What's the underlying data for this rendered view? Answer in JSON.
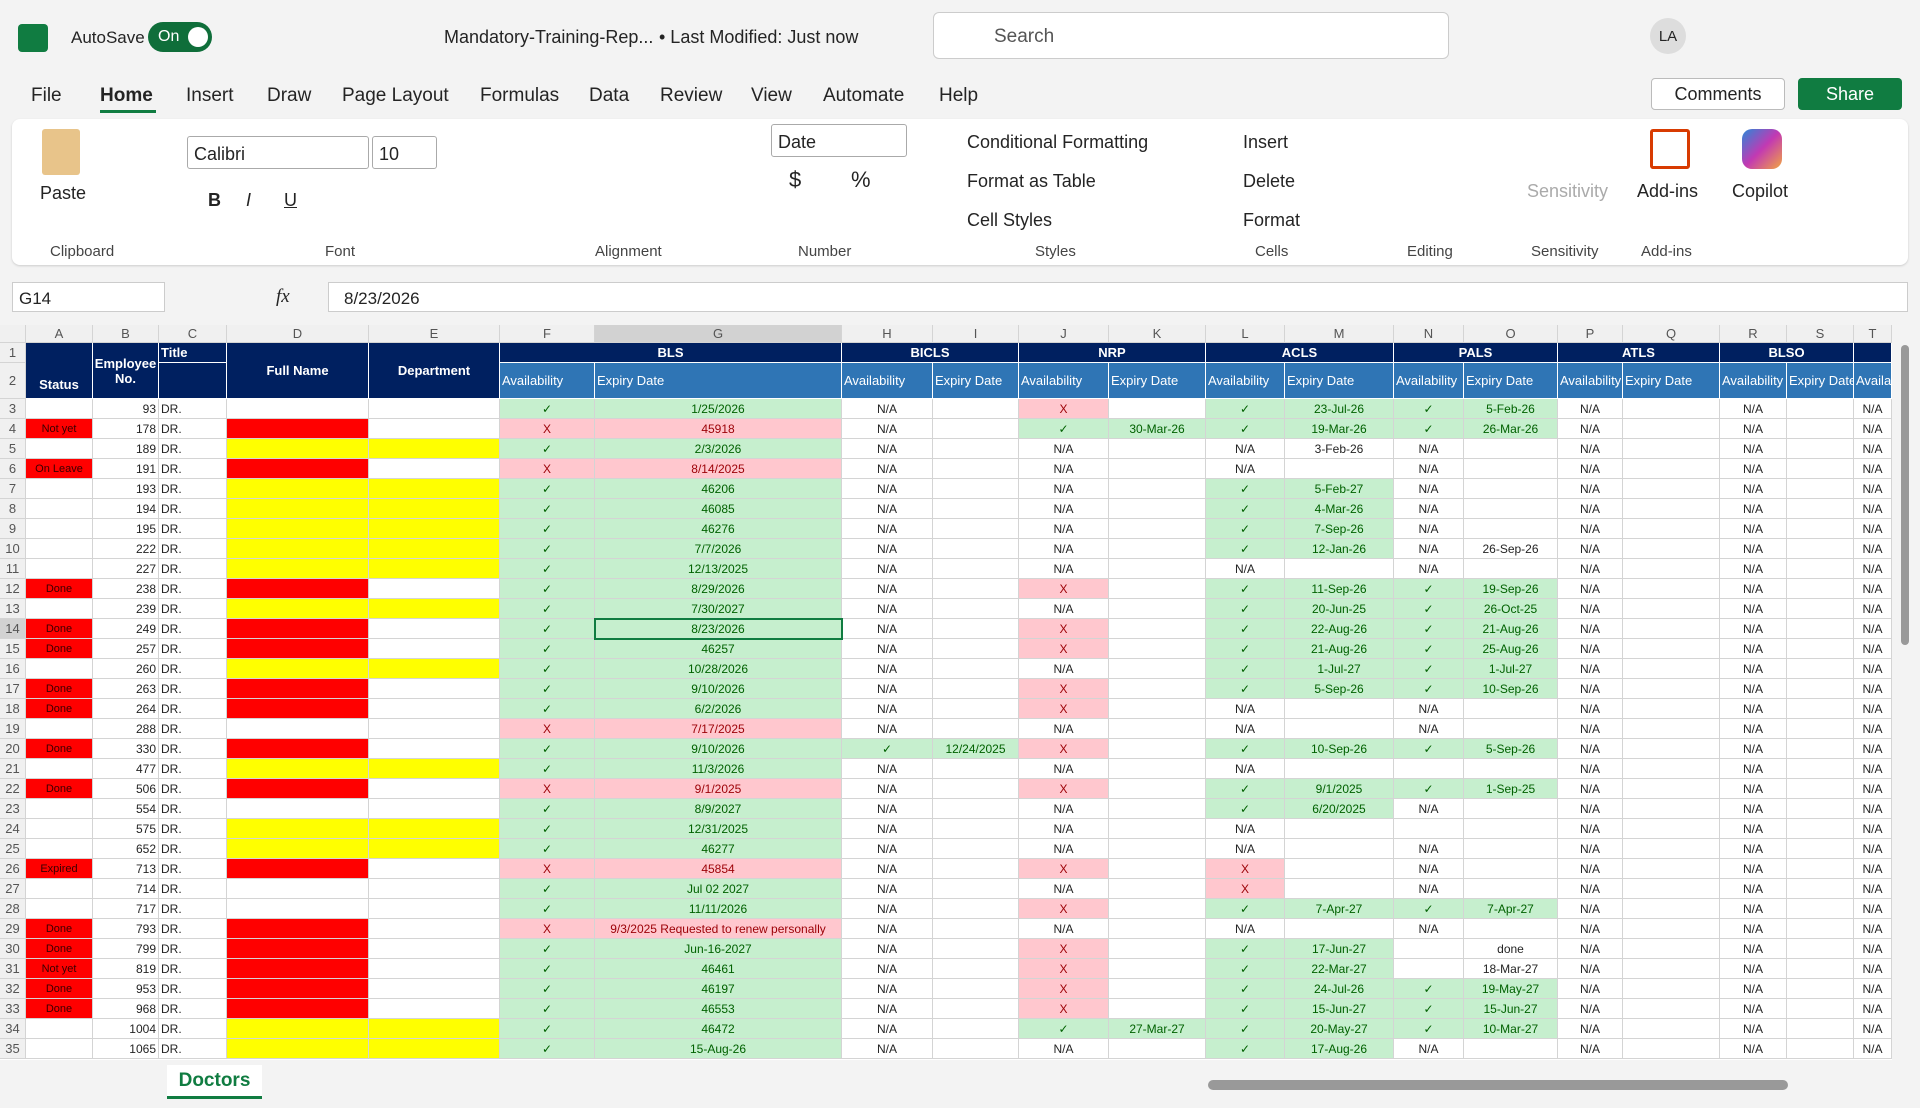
{
  "window": {
    "autosave_label": "AutoSave",
    "autosave_state": "On",
    "file_name": "Mandatory-Training-Rep...",
    "modified": "• Last Modified: Just now",
    "search": "Search",
    "user": "LA"
  },
  "menu": [
    "File",
    "Home",
    "Insert",
    "Draw",
    "Page Layout",
    "Formulas",
    "Data",
    "Review",
    "View",
    "Automate",
    "Help"
  ],
  "buttons": {
    "comments": "Comments",
    "share": "Share"
  },
  "ribbon": {
    "paste": "Paste",
    "font_name": "Calibri",
    "font_size": "10",
    "bold": "B",
    "italic": "I",
    "underline": "U",
    "number_format": "Date",
    "currency": "$",
    "percent": "%",
    "conditional_formatting": "Conditional Formatting",
    "format_as_table": "Format as Table",
    "cell_styles": "Cell Styles",
    "insert": "Insert",
    "delete": "Delete",
    "format": "Format",
    "sensitivity": "Sensitivity",
    "add_ins": "Add-ins",
    "copilot": "Copilot",
    "groups": [
      "Clipboard",
      "Font",
      "Alignment",
      "Number",
      "Styles",
      "Cells",
      "Editing",
      "Sensitivity",
      "Add-ins"
    ]
  },
  "formula_bar": {
    "name_box": "G14",
    "fx": "fx",
    "formula": "8/23/2026"
  },
  "sheet": {
    "columns": [
      "A",
      "B",
      "C",
      "D",
      "E",
      "F",
      "G",
      "H",
      "I",
      "J",
      "K",
      "L",
      "M",
      "N",
      "O",
      "P",
      "Q",
      "R",
      "S",
      "T"
    ],
    "row_numbers": [
      1,
      2,
      3,
      4,
      5,
      6,
      7,
      8,
      9,
      10,
      11,
      12,
      13,
      14,
      15,
      16,
      17,
      18,
      19,
      20,
      21,
      22,
      23,
      24,
      25,
      26,
      27,
      28,
      29,
      30,
      31,
      32,
      33,
      34,
      35
    ],
    "headers": [
      "Status",
      "Employee No.",
      "Title",
      "Full Name",
      "Department"
    ],
    "groups": [
      "BLS",
      "BICLS",
      "NRP",
      "ACLS",
      "PALS",
      "ATLS",
      "BLSO"
    ],
    "subheaders": [
      "Availability",
      "Expiry Date",
      "Availability",
      "Expiry Date",
      "Availability",
      "Expiry Date",
      "Availability",
      "Expiry Date",
      "Availability",
      "Expiry Date",
      "Availability",
      "Expiry Date",
      "Availability",
      "Expiry Date",
      "Availability"
    ],
    "rows": [
      {
        "status": null,
        "employee_no": 93,
        "title": "DR.",
        "cells": [
          "✓",
          "1/25/2026",
          "N/A",
          null,
          "X",
          null,
          "✓",
          "23-Jul-26",
          "✓",
          "5-Feb-26",
          "N/A",
          null,
          "N/A",
          null,
          "N/A"
        ]
      },
      {
        "status": "Not yet",
        "employee_no": 178,
        "title": "DR.",
        "highlight": "#ff0000",
        "cells": [
          "X",
          45918,
          "N/A",
          null,
          "✓",
          "30-Mar-26",
          "✓",
          "19-Mar-26",
          "✓",
          "26-Mar-26",
          "N/A",
          null,
          "N/A",
          null,
          "N/A"
        ]
      },
      {
        "status": null,
        "employee_no": 189,
        "title": "DR.",
        "highlight": "#ffff00",
        "cells": [
          "✓",
          "2/3/2026",
          "N/A",
          null,
          "N/A",
          null,
          "N/A",
          "3-Feb-26",
          "N/A",
          null,
          "N/A",
          null,
          "N/A",
          null,
          "N/A"
        ]
      },
      {
        "status": "On Leave",
        "employee_no": 191,
        "title": "DR.",
        "highlight": "#ff0000",
        "cells": [
          "X",
          "8/14/2025",
          "N/A",
          null,
          "N/A",
          null,
          "N/A",
          null,
          "N/A",
          null,
          "N/A",
          null,
          "N/A",
          null,
          "N/A"
        ]
      },
      {
        "status": null,
        "employee_no": 193,
        "title": "DR.",
        "highlight": "#ffff00",
        "cells": [
          "✓",
          46206,
          "N/A",
          null,
          "N/A",
          null,
          "✓",
          "5-Feb-27",
          "N/A",
          null,
          "N/A",
          null,
          "N/A",
          null,
          "N/A"
        ]
      },
      {
        "status": null,
        "employee_no": 194,
        "title": "DR.",
        "highlight": "#ffff00",
        "cells": [
          "✓",
          46085,
          "N/A",
          null,
          "N/A",
          null,
          "✓",
          "4-Mar-26",
          "N/A",
          null,
          "N/A",
          null,
          "N/A",
          null,
          "N/A"
        ]
      },
      {
        "status": null,
        "employee_no": 195,
        "title": "DR.",
        "highlight": "#ffff00",
        "cells": [
          "✓",
          46276,
          "N/A",
          null,
          "N/A",
          null,
          "✓",
          "7-Sep-26",
          "N/A",
          null,
          "N/A",
          null,
          "N/A",
          null,
          "N/A"
        ]
      },
      {
        "status": null,
        "employee_no": 222,
        "title": "DR.",
        "highlight": "#ffff00",
        "cells": [
          "✓",
          "7/7/2026",
          "N/A",
          null,
          "N/A",
          null,
          "✓",
          "12-Jan-26",
          "N/A",
          "26-Sep-26",
          "N/A",
          null,
          "N/A",
          null,
          "N/A"
        ]
      },
      {
        "status": null,
        "employee_no": 227,
        "title": "DR.",
        "highlight": "#ffff00",
        "cells": [
          "✓",
          "12/13/2025",
          "N/A",
          null,
          "N/A",
          null,
          "N/A",
          null,
          "N/A",
          null,
          "N/A",
          null,
          "N/A",
          null,
          "N/A"
        ]
      },
      {
        "status": "Done",
        "employee_no": 238,
        "title": "DR.",
        "highlight": "#ff0000",
        "cells": [
          "✓",
          "8/29/2026",
          "N/A",
          null,
          "X",
          null,
          "✓",
          "11-Sep-26",
          "✓",
          "19-Sep-26",
          "N/A",
          null,
          "N/A",
          null,
          "N/A"
        ]
      },
      {
        "status": null,
        "employee_no": 239,
        "title": "DR.",
        "highlight": "#ffff00",
        "cells": [
          "✓",
          "7/30/2027",
          "N/A",
          null,
          "N/A",
          null,
          "✓",
          "20-Jun-25",
          "✓",
          "26-Oct-25",
          "N/A",
          null,
          "N/A",
          null,
          "N/A"
        ]
      },
      {
        "status": "Done",
        "employee_no": 249,
        "title": "DR.",
        "highlight": "#ff0000",
        "cells": [
          "✓",
          "8/23/2026",
          "N/A",
          null,
          "X",
          null,
          "✓",
          "22-Aug-26",
          "✓",
          "21-Aug-26",
          "N/A",
          null,
          "N/A",
          null,
          "N/A"
        ]
      },
      {
        "status": "Done",
        "employee_no": 257,
        "title": "DR.",
        "highlight": "#ff0000",
        "cells": [
          "✓",
          46257,
          "N/A",
          null,
          "X",
          null,
          "✓",
          "21-Aug-26",
          "✓",
          "25-Aug-26",
          "N/A",
          null,
          "N/A",
          null,
          "N/A"
        ]
      },
      {
        "status": null,
        "employee_no": 260,
        "title": "DR.",
        "highlight": "#ffff00",
        "cells": [
          "✓",
          "10/28/2026",
          "N/A",
          null,
          "N/A",
          null,
          "✓",
          "1-Jul-27",
          "✓",
          "1-Jul-27",
          "N/A",
          null,
          "N/A",
          null,
          "N/A"
        ]
      },
      {
        "status": "Done",
        "employee_no": 263,
        "title": "DR.",
        "highlight": "#ff0000",
        "cells": [
          "✓",
          "9/10/2026",
          "N/A",
          null,
          "X",
          null,
          "✓",
          "5-Sep-26",
          "✓",
          "10-Sep-26",
          "N/A",
          null,
          "N/A",
          null,
          "N/A"
        ]
      },
      {
        "status": "Done",
        "employee_no": 264,
        "title": "DR.",
        "highlight": "#ff0000",
        "cells": [
          "✓",
          "6/2/2026",
          "N/A",
          null,
          "X",
          null,
          "N/A",
          null,
          "N/A",
          null,
          "N/A",
          null,
          "N/A",
          null,
          "N/A"
        ]
      },
      {
        "status": null,
        "employee_no": 288,
        "title": "DR.",
        "cells": [
          "X",
          "7/17/2025",
          "N/A",
          null,
          "N/A",
          null,
          "N/A",
          null,
          "N/A",
          null,
          "N/A",
          null,
          "N/A",
          null,
          "N/A"
        ]
      },
      {
        "status": "Done",
        "employee_no": 330,
        "title": "DR.",
        "highlight": "#ff0000",
        "cells": [
          "✓",
          "9/10/2026",
          "✓",
          "12/24/2025",
          "X",
          null,
          "✓",
          "10-Sep-26",
          "✓",
          "5-Sep-26",
          "N/A",
          null,
          "N/A",
          null,
          "N/A"
        ]
      },
      {
        "status": null,
        "employee_no": 477,
        "title": "DR.",
        "highlight": "#ffff00",
        "cells": [
          "✓",
          "11/3/2026",
          "N/A",
          null,
          "N/A",
          null,
          "N/A",
          null,
          null,
          null,
          "N/A",
          null,
          "N/A",
          null,
          "N/A"
        ]
      },
      {
        "status": "Done",
        "employee_no": 506,
        "title": "DR.",
        "highlight": "#ff0000",
        "cells": [
          "X",
          "9/1/2025",
          "N/A",
          null,
          "X",
          null,
          "✓",
          "9/1/2025",
          "✓",
          "1-Sep-25",
          "N/A",
          null,
          "N/A",
          null,
          "N/A"
        ]
      },
      {
        "status": null,
        "employee_no": 554,
        "title": "DR.",
        "cells": [
          "✓",
          "8/9/2027",
          "N/A",
          null,
          "N/A",
          null,
          "✓",
          "6/20/2025",
          "N/A",
          null,
          "N/A",
          null,
          "N/A",
          null,
          "N/A"
        ]
      },
      {
        "status": null,
        "employee_no": 575,
        "title": "DR.",
        "highlight": "#ffff00",
        "cells": [
          "✓",
          "12/31/2025",
          "N/A",
          null,
          "N/A",
          null,
          "N/A",
          null,
          null,
          null,
          "N/A",
          null,
          "N/A",
          null,
          "N/A"
        ]
      },
      {
        "status": null,
        "employee_no": 652,
        "title": "DR.",
        "highlight": "#ffff00",
        "cells": [
          "✓",
          46277,
          "N/A",
          null,
          "N/A",
          null,
          "N/A",
          null,
          "N/A",
          null,
          "N/A",
          null,
          "N/A",
          null,
          "N/A"
        ]
      },
      {
        "status": "Expired",
        "employee_no": 713,
        "title": "DR.",
        "highlight": "#ff0000",
        "cells": [
          "X",
          45854,
          "N/A",
          null,
          "X",
          null,
          "X",
          null,
          "N/A",
          null,
          "N/A",
          null,
          "N/A",
          null,
          "N/A"
        ]
      },
      {
        "status": null,
        "employee_no": 714,
        "title": "DR.",
        "cells": [
          "✓",
          "Jul 02 2027",
          "N/A",
          null,
          "N/A",
          null,
          "X",
          null,
          "N/A",
          null,
          "N/A",
          null,
          "N/A",
          null,
          "N/A"
        ]
      },
      {
        "status": null,
        "employee_no": 717,
        "title": "DR.",
        "cells": [
          "✓",
          "11/11/2026",
          "N/A",
          null,
          "X",
          null,
          "✓",
          "7-Apr-27",
          "✓",
          "7-Apr-27",
          "N/A",
          null,
          "N/A",
          null,
          "N/A"
        ]
      },
      {
        "status": "Done",
        "employee_no": 793,
        "title": "DR.",
        "highlight": "#ff0000",
        "cells": [
          "X",
          "9/3/2025 Requested to renew personally",
          "N/A",
          null,
          "N/A",
          null,
          "N/A",
          null,
          "N/A",
          null,
          "N/A",
          null,
          "N/A",
          null,
          "N/A"
        ]
      },
      {
        "status": "Done",
        "employee_no": 799,
        "title": "DR.",
        "highlight": "#ff0000",
        "cells": [
          "✓",
          "Jun-16-2027",
          "N/A",
          null,
          "X",
          null,
          "✓",
          "17-Jun-27",
          null,
          "done",
          "N/A",
          null,
          "N/A",
          null,
          "N/A"
        ]
      },
      {
        "status": "Not yet",
        "employee_no": 819,
        "title": "DR.",
        "highlight": "#ff0000",
        "cells": [
          "✓",
          46461,
          "N/A",
          null,
          "X",
          null,
          "✓",
          "22-Mar-27",
          null,
          "18-Mar-27",
          "N/A",
          null,
          "N/A",
          null,
          "N/A"
        ]
      },
      {
        "status": "Done",
        "employee_no": 953,
        "title": "DR.",
        "highlight": "#ff0000",
        "cells": [
          "✓",
          46197,
          "N/A",
          null,
          "X",
          null,
          "✓",
          "24-Jul-26",
          "✓",
          "19-May-27",
          "N/A",
          null,
          "N/A",
          null,
          "N/A"
        ]
      },
      {
        "status": "Done",
        "employee_no": 968,
        "title": "DR.",
        "highlight": "#ff0000",
        "cells": [
          "✓",
          46553,
          "N/A",
          null,
          "X",
          null,
          "✓",
          "15-Jun-27",
          "✓",
          "15-Jun-27",
          "N/A",
          null,
          "N/A",
          null,
          "N/A"
        ]
      },
      {
        "status": null,
        "employee_no": 1004,
        "title": "DR.",
        "highlight": "#ffff00",
        "cells": [
          "✓",
          46472,
          "N/A",
          null,
          "✓",
          "27-Mar-27",
          "✓",
          "20-May-27",
          "✓",
          "10-Mar-27",
          "N/A",
          null,
          "N/A",
          null,
          "N/A"
        ]
      },
      {
        "status": null,
        "employee_no": 1065,
        "title": "DR.",
        "highlight": "#ffff00",
        "cells": [
          "✓",
          "15-Aug-26",
          "N/A",
          null,
          "N/A",
          null,
          "✓",
          "17-Aug-26",
          "N/A",
          null,
          "N/A",
          null,
          "N/A",
          null,
          "N/A"
        ]
      }
    ]
  },
  "tabs": [
    "Doctors"
  ]
}
